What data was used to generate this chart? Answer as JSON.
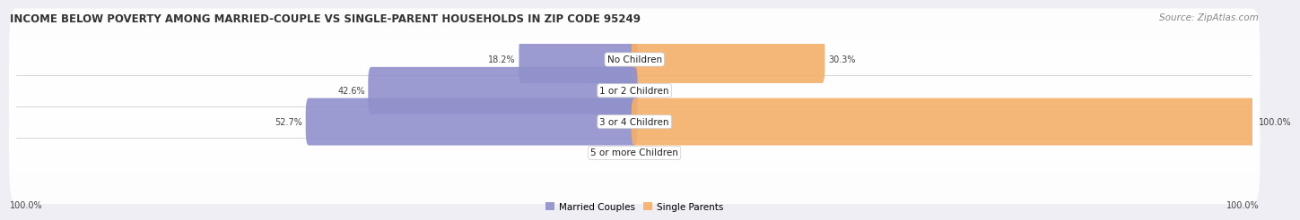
{
  "title": "INCOME BELOW POVERTY AMONG MARRIED-COUPLE VS SINGLE-PARENT HOUSEHOLDS IN ZIP CODE 95249",
  "source": "Source: ZipAtlas.com",
  "categories": [
    "No Children",
    "1 or 2 Children",
    "3 or 4 Children",
    "5 or more Children"
  ],
  "married_values": [
    18.2,
    42.6,
    52.7,
    0.0
  ],
  "single_values": [
    30.3,
    0.0,
    100.0,
    0.0
  ],
  "married_color": "#9090cc",
  "single_color": "#f5b06a",
  "single_color_light": "#f8d4a8",
  "married_color_light": "#c0c8e8",
  "max_value": 100.0,
  "legend_married": "Married Couples",
  "legend_single": "Single Parents",
  "bottom_left_label": "100.0%",
  "bottom_right_label": "100.0%",
  "title_fontsize": 8.5,
  "source_fontsize": 7.5,
  "label_fontsize": 7.0,
  "category_fontsize": 7.5,
  "legend_fontsize": 7.5,
  "background_color": "#eeeef4",
  "row_bg_color": "#f5f5f8",
  "row_alt_color": "#e8e8f0"
}
